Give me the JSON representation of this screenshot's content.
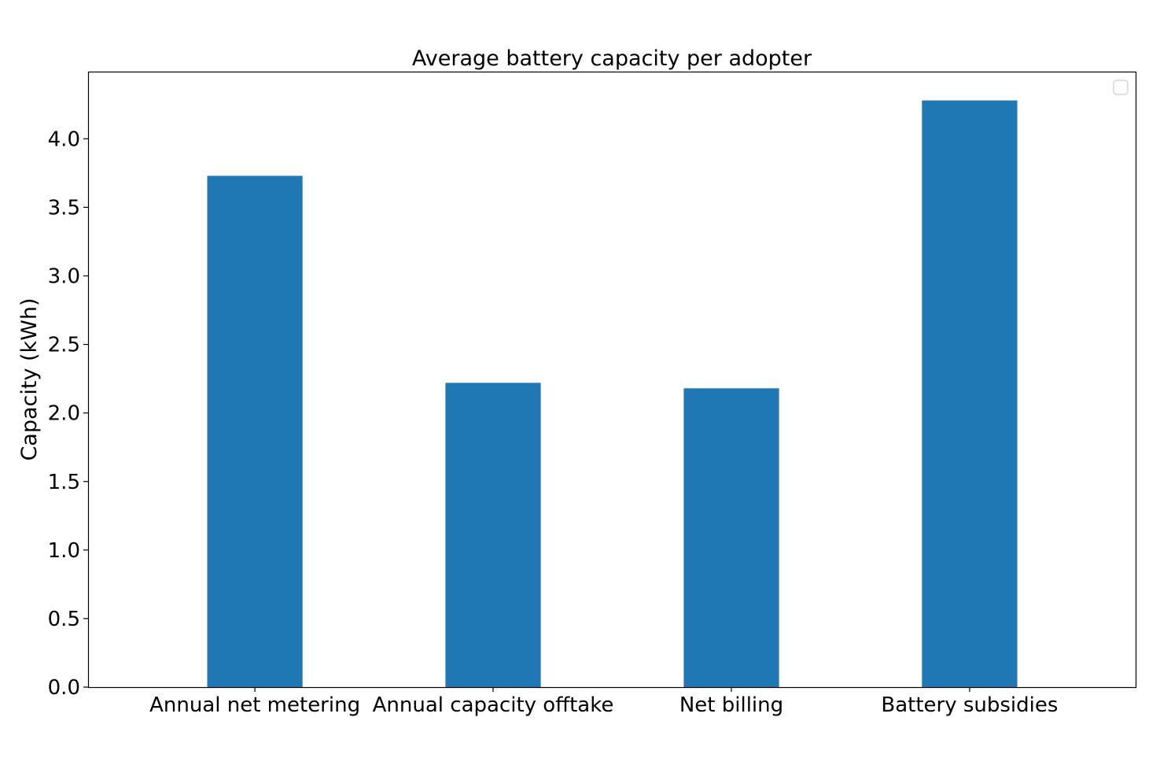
{
  "chart_data": {
    "type": "bar",
    "title": "Average battery capacity per adopter",
    "xlabel": "",
    "ylabel": "Capacity (kWh)",
    "categories": [
      "Annual net metering",
      "Annual capacity offtake",
      "Net billing",
      "Battery subsidies"
    ],
    "values": [
      3.73,
      2.22,
      2.18,
      4.28
    ],
    "ylim": [
      0,
      4.49
    ],
    "yticks": [
      0.0,
      0.5,
      1.0,
      1.5,
      2.0,
      2.5,
      3.0,
      3.5,
      4.0
    ],
    "ytick_labels": [
      "0.0",
      "0.5",
      "1.0",
      "1.5",
      "2.0",
      "2.5",
      "3.0",
      "3.5",
      "4.0"
    ],
    "grid": false,
    "legend": {
      "placement": "top-right",
      "entries": []
    },
    "colors": {
      "bar": "#1f77b4",
      "axis": "#000000",
      "background": "#ffffff"
    }
  }
}
